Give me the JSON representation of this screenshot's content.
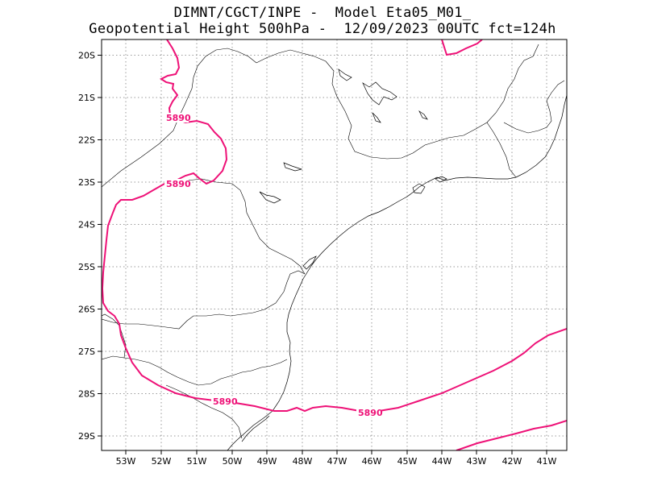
{
  "title": {
    "line1": "DIMNT/CGCT/INPE -  Model Eta05_M01_",
    "line2": "Geopotential Height 500hPa -  12/09/2023 00UTC fct=124h"
  },
  "map": {
    "lat_labels": [
      "20S",
      "21S",
      "22S",
      "23S",
      "24S",
      "25S",
      "26S",
      "27S",
      "28S",
      "29S"
    ],
    "lon_labels": [
      "53W",
      "52W",
      "51W",
      "50W",
      "49W",
      "48W",
      "47W",
      "46W",
      "45W",
      "44W",
      "43W",
      "42W",
      "41W"
    ],
    "contour_color": "#ee1177",
    "contour_value": "5890",
    "contour_labels": [
      "5890",
      "5890",
      "5890",
      "5890"
    ]
  }
}
